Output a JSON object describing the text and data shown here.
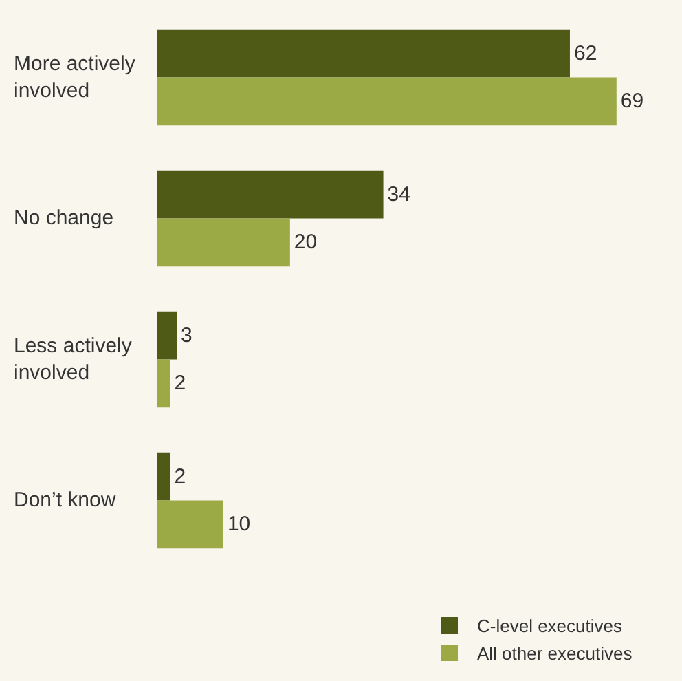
{
  "chart_data": {
    "type": "bar",
    "orientation": "horizontal",
    "categories": [
      "More actively\ninvolved",
      "No change",
      "Less actively\ninvolved",
      "Don’t know"
    ],
    "series": [
      {
        "name": "C-level executives",
        "color": "#4e5a15",
        "values": [
          62,
          34,
          3,
          2
        ]
      },
      {
        "name": "All other executives",
        "color": "#9caa45",
        "values": [
          69,
          20,
          2,
          10
        ]
      }
    ],
    "tick_labels": "y",
    "data_labels": true,
    "grid": false,
    "legend": "bottom right"
  }
}
